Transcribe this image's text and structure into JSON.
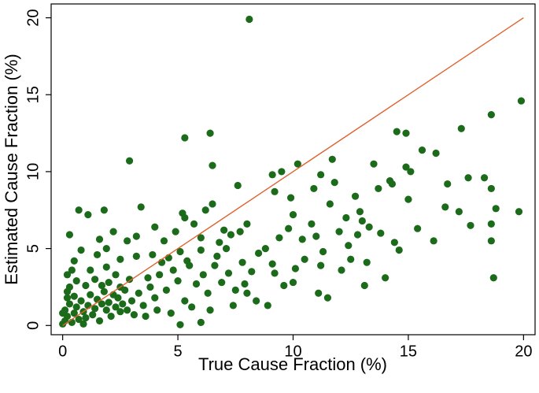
{
  "chart_data": {
    "type": "scatter",
    "x_label": "True Cause Fraction (%)",
    "y_label": "Estimated Cause Fraction (%)",
    "color": "#1b6b1b",
    "xlim": [
      -0.5,
      20.5
    ],
    "ylim": [
      -0.6,
      20.9
    ],
    "xticks": [
      0,
      5,
      10,
      15,
      20
    ],
    "yticks": [
      0,
      5,
      10,
      15,
      20
    ],
    "grid": false,
    "reference_line": {
      "x": [
        0,
        20
      ],
      "y": [
        0,
        20
      ],
      "color": "#e0622e"
    },
    "x": [
      8.1,
      19.9,
      18.6,
      17.3,
      14.5,
      14.9,
      6.4,
      5.3,
      15.6,
      16.2,
      2.9,
      6.5,
      10.2,
      11.7,
      13.5,
      14.9,
      15.1,
      9.5,
      9.1,
      17.6,
      18.3,
      16.7,
      7.6,
      14.2,
      14.3,
      10.9,
      11.8,
      9.2,
      18.6,
      12.7,
      18.8,
      19.8,
      16.6,
      17.2,
      3.4,
      0.7,
      1.8,
      1.1,
      5.2,
      5.3,
      6.2,
      4.0,
      10.0,
      7.0,
      8.0,
      13.0,
      13.3,
      15.4,
      17.7,
      18.6,
      16.1,
      18.6,
      14.4,
      12.4,
      11.0,
      9.4,
      0.3,
      2.2,
      1.6,
      2.8,
      4.4,
      6.0,
      5.1,
      6.7,
      7.1,
      8.5,
      10.5,
      11.2,
      12.5,
      14.6,
      13.2,
      12.1,
      14.0,
      13.1,
      18.7,
      10.0,
      11.1,
      11.5,
      9.6,
      8.4,
      8.9,
      7.4,
      8.2,
      7.9,
      5.1,
      6.0,
      9.2,
      0.8,
      0.4,
      0.2,
      1.9,
      3.2,
      4.3,
      3.7,
      2.5,
      0,
      0.1,
      0.2,
      0.1,
      0.3,
      0.2,
      0.4,
      0.5,
      0.6,
      0.7,
      0.8,
      0.9,
      1.0,
      1.1,
      1.2,
      1.3,
      1.4,
      1.5,
      1.6,
      1.7,
      1.8,
      1.9,
      2.0,
      2.1,
      2.2,
      2.3,
      2.4,
      2.5,
      2.6,
      2.7,
      2.8,
      3.0,
      3.1,
      3.3,
      3.5,
      0.3,
      0.6,
      1.0,
      1.4,
      2.0,
      2.3,
      1.2,
      0.9,
      0.0,
      0.2,
      0.5,
      1.7,
      2.9,
      3.8,
      4.0,
      4.2,
      4.5,
      4.8,
      5.0,
      5.3,
      5.5,
      5.8,
      6.1,
      6.3,
      6.6,
      6.9,
      7.2,
      7.5,
      7.8,
      3.6,
      4.1,
      4.7,
      5.6,
      6.4,
      3.9,
      4.6,
      5.4,
      6.0,
      6.8,
      7.3,
      7.7,
      8.8,
      9.8,
      10.4,
      10.8,
      11.6,
      12.3,
      12.9,
      11.3,
      9.1,
      10.1,
      8.0,
      12.8,
      13.8,
      15.0,
      13.7,
      12.0,
      9.9,
      11.2,
      5.7,
      6.5,
      4.9,
      3.2,
      2.5,
      1.5,
      0.5,
      1.9
    ],
    "values": [
      19.9,
      14.6,
      13.7,
      12.8,
      12.6,
      12.5,
      12.5,
      12.2,
      11.4,
      11.2,
      10.7,
      10.4,
      10.5,
      10.8,
      10.5,
      10.3,
      10.0,
      10.0,
      9.8,
      9.6,
      9.6,
      9.2,
      9.1,
      9.4,
      9.2,
      8.9,
      9.3,
      8.7,
      8.9,
      8.4,
      7.6,
      7.4,
      7.7,
      7.4,
      7.7,
      7.5,
      7.5,
      7.2,
      7.3,
      7.0,
      7.5,
      6.4,
      7.2,
      6.2,
      6.6,
      6.8,
      6.4,
      6.3,
      6.5,
      6.6,
      5.5,
      5.5,
      5.4,
      5.2,
      5.8,
      5.7,
      5.9,
      6.1,
      5.6,
      5.5,
      5.5,
      5.7,
      4.8,
      4.5,
      5.0,
      4.7,
      4.3,
      3.9,
      4.3,
      4.9,
      4.1,
      3.6,
      3.1,
      2.6,
      3.1,
      2.8,
      2.1,
      1.8,
      2.6,
      1.6,
      1.3,
      1.3,
      3.5,
      2.7,
      0.05,
      0.2,
      3.4,
      4.9,
      3.6,
      3.3,
      3.8,
      4.5,
      4.1,
      3.1,
      2.5,
      0.1,
      0.3,
      0.6,
      1.0,
      1.4,
      1.8,
      0.2,
      0.8,
      1.2,
      0.4,
      1.6,
      0.9,
      0.5,
      1.3,
      2.0,
      0.7,
      1.1,
      1.7,
      0.3,
      1.4,
      2.2,
      1.0,
      1.5,
      0.6,
      2.0,
      1.2,
      1.8,
      0.9,
      1.4,
      2.3,
      1.0,
      1.6,
      0.7,
      2.1,
      1.3,
      2.5,
      2.9,
      2.6,
      3.0,
      2.8,
      3.3,
      3.6,
      0.1,
      0.8,
      2.2,
      1.9,
      2.6,
      3.0,
      2.5,
      1.8,
      3.3,
      2.3,
      3.6,
      2.9,
      1.6,
      3.9,
      2.7,
      3.3,
      2.1,
      3.9,
      2.8,
      3.4,
      2.3,
      4.1,
      0.6,
      1.0,
      0.8,
      1.2,
      1.0,
      4.6,
      4.4,
      4.2,
      4.9,
      5.4,
      5.9,
      6.1,
      5.0,
      6.3,
      5.6,
      6.6,
      7.9,
      7.0,
      7.4,
      4.8,
      4.0,
      3.7,
      2.1,
      5.9,
      6.0,
      8.2,
      8.9,
      6.1,
      8.3,
      9.8,
      6.6,
      7.9,
      6.1,
      5.8,
      4.3,
      4.6,
      4.2,
      5.0
    ]
  }
}
